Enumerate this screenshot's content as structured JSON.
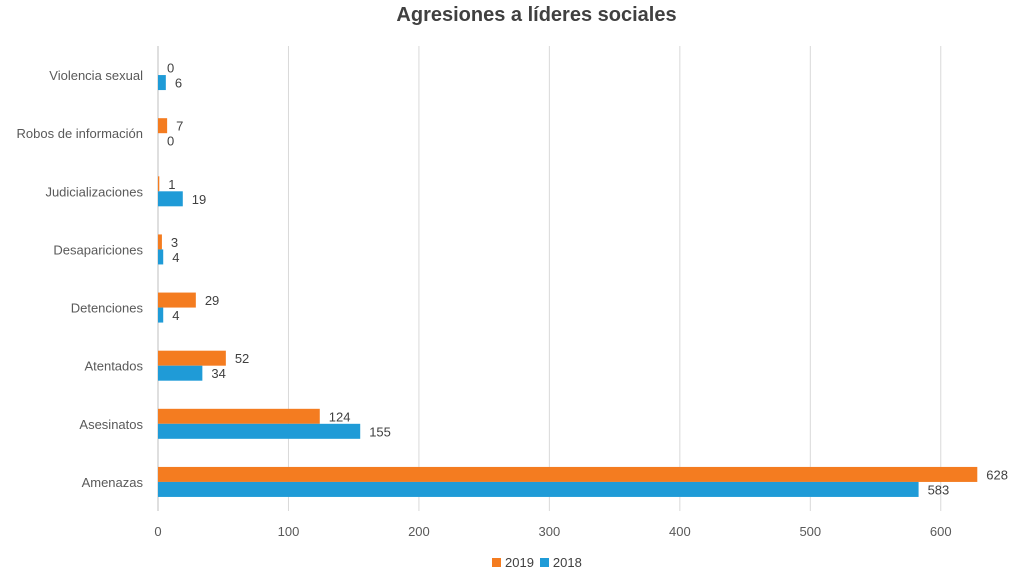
{
  "chart_data": {
    "type": "bar",
    "orientation": "horizontal",
    "title": "Agresiones a líderes sociales",
    "categories": [
      "Violencia sexual",
      "Robos de información",
      "Judicializaciones",
      "Desapariciones",
      "Detenciones",
      "Atentados",
      "Asesinatos",
      "Amenazas"
    ],
    "series": [
      {
        "name": "2019",
        "color": "#f47c20",
        "values": [
          0,
          7,
          1,
          3,
          29,
          52,
          124,
          628
        ]
      },
      {
        "name": "2018",
        "color": "#1f9bd7",
        "values": [
          6,
          0,
          19,
          4,
          4,
          34,
          155,
          583
        ]
      }
    ],
    "xlim": [
      0,
      650
    ],
    "xticks": [
      "0",
      "100",
      "200",
      "300",
      "400",
      "500",
      "600"
    ],
    "grid": true,
    "legend": "bottom"
  }
}
